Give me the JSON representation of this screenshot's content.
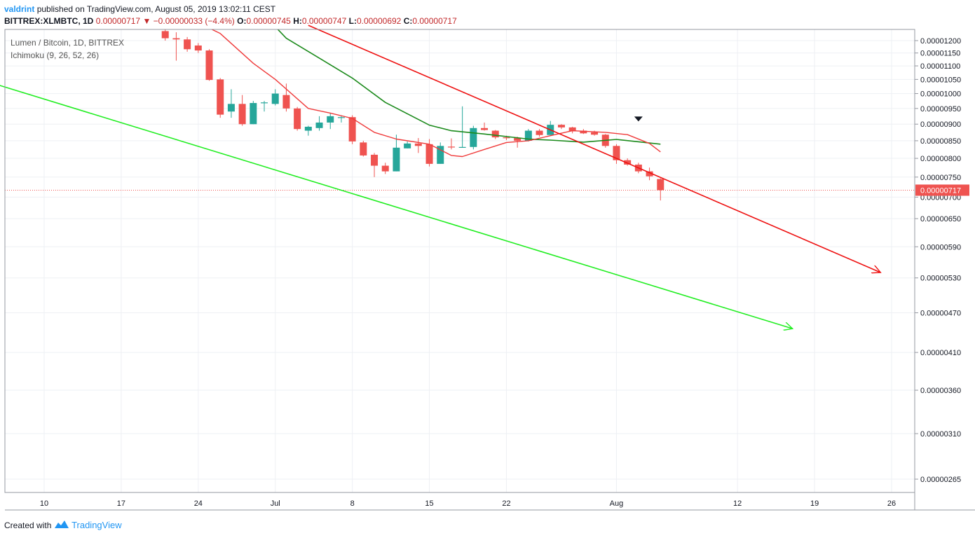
{
  "header": {
    "author": "valdrint",
    "published_text": "published on TradingView.com, August 05, 2019 13:02:11 CEST"
  },
  "ohlc": {
    "symbol": "BITTREX:XLMBTC, 1D",
    "last": "0.00000717",
    "change": "−0.00000033 (−4.4%)",
    "o_label": "O:",
    "o": "0.00000745",
    "h_label": "H:",
    "h": "0.00000747",
    "l_label": "L:",
    "l": "0.00000692",
    "c_label": "C:",
    "c": "0.00000717"
  },
  "legend": {
    "title": "Lumen / Bitcoin, 1D, BITTREX",
    "indicator": "Ichimoku (9, 26, 52, 26)"
  },
  "footer": {
    "created_with": "Created with",
    "brand": "TradingView"
  },
  "colors": {
    "up": "#26a69a",
    "down": "#ef5350",
    "tenkan": "#ef3a3a",
    "kijun": "#1b8a1b",
    "resistance": "#ee1111",
    "support": "#22ee22",
    "price_tag": "#ef5350"
  },
  "chart_data": {
    "type": "candlestick",
    "price_tag": "0.00000717",
    "y_ticks": [
      "0.00001200",
      "0.00001150",
      "0.00001100",
      "0.00001050",
      "0.00001000",
      "0.00000950",
      "0.00000900",
      "0.00000850",
      "0.00000800",
      "0.00000750",
      "0.00000700",
      "0.00000650",
      "0.00000590",
      "0.00000530",
      "0.00000470",
      "0.00000410",
      "0.00000360",
      "0.00000310",
      "0.00000265"
    ],
    "x_ticks": [
      {
        "label": "10",
        "date": "2019-06-10"
      },
      {
        "label": "17",
        "date": "2019-06-17"
      },
      {
        "label": "24",
        "date": "2019-06-24"
      },
      {
        "label": "Jul",
        "date": "2019-07-01"
      },
      {
        "label": "8",
        "date": "2019-07-08"
      },
      {
        "label": "15",
        "date": "2019-07-15"
      },
      {
        "label": "22",
        "date": "2019-07-22"
      },
      {
        "label": "Aug",
        "date": "2019-08-01"
      },
      {
        "label": "12",
        "date": "2019-08-12"
      },
      {
        "label": "19",
        "date": "2019-08-19"
      },
      {
        "label": "26",
        "date": "2019-08-26"
      }
    ],
    "candles": [
      {
        "date": "2019-06-21",
        "o": 1240,
        "h": 1255,
        "l": 1200,
        "c": 1210
      },
      {
        "date": "2019-06-22",
        "o": 1210,
        "h": 1235,
        "l": 1120,
        "c": 1205
      },
      {
        "date": "2019-06-23",
        "o": 1205,
        "h": 1215,
        "l": 1155,
        "c": 1165
      },
      {
        "date": "2019-06-24",
        "o": 1180,
        "h": 1190,
        "l": 1150,
        "c": 1160
      },
      {
        "date": "2019-06-25",
        "o": 1160,
        "h": 1165,
        "l": 1045,
        "c": 1048
      },
      {
        "date": "2019-06-26",
        "o": 1050,
        "h": 1055,
        "l": 920,
        "c": 930
      },
      {
        "date": "2019-06-27",
        "o": 940,
        "h": 1015,
        "l": 920,
        "c": 965
      },
      {
        "date": "2019-06-28",
        "o": 965,
        "h": 995,
        "l": 895,
        "c": 900
      },
      {
        "date": "2019-06-29",
        "o": 900,
        "h": 975,
        "l": 900,
        "c": 968
      },
      {
        "date": "2019-06-30",
        "o": 968,
        "h": 975,
        "l": 940,
        "c": 970
      },
      {
        "date": "2019-07-01",
        "o": 965,
        "h": 1015,
        "l": 960,
        "c": 1000
      },
      {
        "date": "2019-07-02",
        "o": 995,
        "h": 1035,
        "l": 940,
        "c": 950
      },
      {
        "date": "2019-07-03",
        "o": 950,
        "h": 955,
        "l": 880,
        "c": 885
      },
      {
        "date": "2019-07-04",
        "o": 880,
        "h": 895,
        "l": 865,
        "c": 892
      },
      {
        "date": "2019-07-05",
        "o": 888,
        "h": 925,
        "l": 880,
        "c": 905
      },
      {
        "date": "2019-07-06",
        "o": 905,
        "h": 935,
        "l": 885,
        "c": 925
      },
      {
        "date": "2019-07-07",
        "o": 922,
        "h": 928,
        "l": 905,
        "c": 922
      },
      {
        "date": "2019-07-08",
        "o": 922,
        "h": 928,
        "l": 840,
        "c": 848
      },
      {
        "date": "2019-07-09",
        "o": 845,
        "h": 850,
        "l": 805,
        "c": 808
      },
      {
        "date": "2019-07-10",
        "o": 810,
        "h": 815,
        "l": 750,
        "c": 780
      },
      {
        "date": "2019-07-11",
        "o": 780,
        "h": 788,
        "l": 758,
        "c": 765
      },
      {
        "date": "2019-07-12",
        "o": 765,
        "h": 868,
        "l": 765,
        "c": 830
      },
      {
        "date": "2019-07-13",
        "o": 828,
        "h": 848,
        "l": 828,
        "c": 842
      },
      {
        "date": "2019-07-14",
        "o": 842,
        "h": 858,
        "l": 815,
        "c": 835
      },
      {
        "date": "2019-07-15",
        "o": 840,
        "h": 855,
        "l": 778,
        "c": 785
      },
      {
        "date": "2019-07-16",
        "o": 785,
        "h": 845,
        "l": 785,
        "c": 835
      },
      {
        "date": "2019-07-17",
        "o": 833,
        "h": 857,
        "l": 825,
        "c": 832
      },
      {
        "date": "2019-07-18",
        "o": 830,
        "h": 957,
        "l": 830,
        "c": 832
      },
      {
        "date": "2019-07-19",
        "o": 832,
        "h": 895,
        "l": 825,
        "c": 888
      },
      {
        "date": "2019-07-20",
        "o": 888,
        "h": 905,
        "l": 880,
        "c": 882
      },
      {
        "date": "2019-07-21",
        "o": 880,
        "h": 882,
        "l": 855,
        "c": 860
      },
      {
        "date": "2019-07-22",
        "o": 860,
        "h": 865,
        "l": 852,
        "c": 858
      },
      {
        "date": "2019-07-23",
        "o": 858,
        "h": 862,
        "l": 830,
        "c": 850
      },
      {
        "date": "2019-07-24",
        "o": 850,
        "h": 885,
        "l": 848,
        "c": 880
      },
      {
        "date": "2019-07-25",
        "o": 880,
        "h": 885,
        "l": 862,
        "c": 867
      },
      {
        "date": "2019-07-26",
        "o": 867,
        "h": 910,
        "l": 867,
        "c": 898
      },
      {
        "date": "2019-07-27",
        "o": 898,
        "h": 900,
        "l": 885,
        "c": 890
      },
      {
        "date": "2019-07-28",
        "o": 890,
        "h": 892,
        "l": 872,
        "c": 878
      },
      {
        "date": "2019-07-29",
        "o": 880,
        "h": 885,
        "l": 870,
        "c": 872
      },
      {
        "date": "2019-07-30",
        "o": 875,
        "h": 880,
        "l": 865,
        "c": 868
      },
      {
        "date": "2019-07-31",
        "o": 868,
        "h": 870,
        "l": 830,
        "c": 835
      },
      {
        "date": "2019-08-01",
        "o": 835,
        "h": 840,
        "l": 785,
        "c": 795
      },
      {
        "date": "2019-08-02",
        "o": 795,
        "h": 800,
        "l": 780,
        "c": 783
      },
      {
        "date": "2019-08-03",
        "o": 783,
        "h": 788,
        "l": 760,
        "c": 765
      },
      {
        "date": "2019-08-04",
        "o": 765,
        "h": 775,
        "l": 742,
        "c": 752
      },
      {
        "date": "2019-08-05",
        "o": 745,
        "h": 747,
        "l": 692,
        "c": 717
      }
    ],
    "tenkan": [
      {
        "date": "2019-06-23",
        "v": 1300
      },
      {
        "date": "2019-06-26",
        "v": 1230
      },
      {
        "date": "2019-06-29",
        "v": 1110
      },
      {
        "date": "2019-07-01",
        "v": 1050
      },
      {
        "date": "2019-07-04",
        "v": 950
      },
      {
        "date": "2019-07-06",
        "v": 935
      },
      {
        "date": "2019-07-08",
        "v": 918
      },
      {
        "date": "2019-07-10",
        "v": 875
      },
      {
        "date": "2019-07-12",
        "v": 855
      },
      {
        "date": "2019-07-15",
        "v": 840
      },
      {
        "date": "2019-07-17",
        "v": 808
      },
      {
        "date": "2019-07-18",
        "v": 805
      },
      {
        "date": "2019-07-20",
        "v": 825
      },
      {
        "date": "2019-07-22",
        "v": 845
      },
      {
        "date": "2019-07-24",
        "v": 850
      },
      {
        "date": "2019-07-26",
        "v": 865
      },
      {
        "date": "2019-07-28",
        "v": 880
      },
      {
        "date": "2019-07-31",
        "v": 875
      },
      {
        "date": "2019-08-02",
        "v": 868
      },
      {
        "date": "2019-08-04",
        "v": 842
      },
      {
        "date": "2019-08-05",
        "v": 818
      }
    ],
    "kijun": [
      {
        "date": "2019-06-30",
        "v": 1310
      },
      {
        "date": "2019-07-02",
        "v": 1210
      },
      {
        "date": "2019-07-05",
        "v": 1130
      },
      {
        "date": "2019-07-08",
        "v": 1055
      },
      {
        "date": "2019-07-11",
        "v": 970
      },
      {
        "date": "2019-07-15",
        "v": 897
      },
      {
        "date": "2019-07-17",
        "v": 880
      },
      {
        "date": "2019-07-20",
        "v": 870
      },
      {
        "date": "2019-07-24",
        "v": 855
      },
      {
        "date": "2019-07-26",
        "v": 852
      },
      {
        "date": "2019-07-29",
        "v": 846
      },
      {
        "date": "2019-08-01",
        "v": 854
      },
      {
        "date": "2019-08-05",
        "v": 840
      }
    ],
    "resistance_line": [
      {
        "date": "2019-07-04",
        "v": 1265
      },
      {
        "date": "2019-08-25",
        "v": 540
      }
    ],
    "support_line": [
      {
        "date": "2019-06-05",
        "v": 1040
      },
      {
        "date": "2019-08-17",
        "v": 445
      }
    ],
    "marker": {
      "date": "2019-08-03",
      "v": 915
    }
  }
}
